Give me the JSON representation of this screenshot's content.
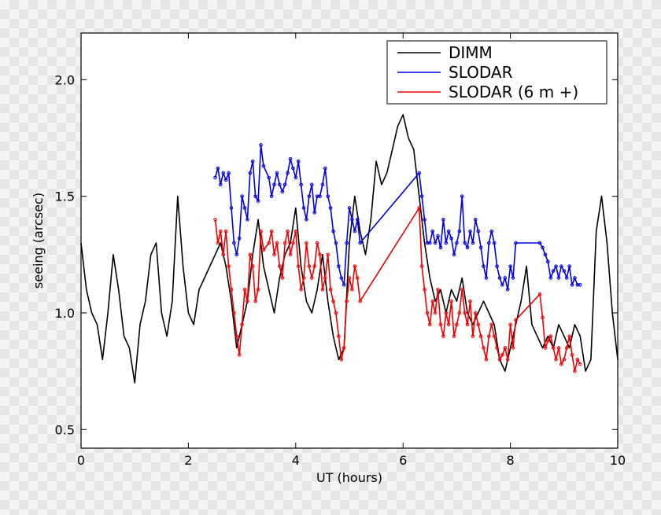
{
  "chart_data": {
    "type": "line",
    "title": "",
    "xlabel": "UT (hours)",
    "ylabel": "seeing (arcsec)",
    "xlim": [
      0,
      10
    ],
    "ylim": [
      0.42,
      2.2
    ],
    "xticks": [
      0,
      2,
      4,
      6,
      8,
      10
    ],
    "xtick_labels": [
      "0",
      "2",
      "4",
      "6",
      "8",
      "10"
    ],
    "yticks": [
      0.5,
      1.0,
      1.5,
      2.0
    ],
    "ytick_labels": [
      "0.5",
      "1.0",
      "1.5",
      "2.0"
    ],
    "legend_position": "top-right",
    "series": [
      {
        "name": "DIMM",
        "color": "#000000",
        "x": [
          0.0,
          0.1,
          0.2,
          0.3,
          0.4,
          0.5,
          0.6,
          0.7,
          0.8,
          0.9,
          1.0,
          1.1,
          1.2,
          1.3,
          1.4,
          1.5,
          1.6,
          1.7,
          1.8,
          1.9,
          2.0,
          2.1,
          2.2,
          2.3,
          2.4,
          2.5,
          2.6,
          2.7,
          2.8,
          2.9,
          3.0,
          3.1,
          3.2,
          3.3,
          3.4,
          3.5,
          3.6,
          3.7,
          3.8,
          3.9,
          4.0,
          4.1,
          4.2,
          4.3,
          4.4,
          4.5,
          4.6,
          4.7,
          4.8,
          4.9,
          5.0,
          5.1,
          5.2,
          5.3,
          5.4,
          5.5,
          5.6,
          5.7,
          5.8,
          5.9,
          6.0,
          6.1,
          6.2,
          6.3,
          6.4,
          6.5,
          6.6,
          6.7,
          6.8,
          6.9,
          7.0,
          7.1,
          7.2,
          7.3,
          7.4,
          7.5,
          7.6,
          7.7,
          7.8,
          7.9,
          8.0,
          8.1,
          8.2,
          8.3,
          8.4,
          8.5,
          8.6,
          8.7,
          8.8,
          8.9,
          9.0,
          9.1,
          9.2,
          9.3,
          9.4,
          9.5,
          9.6,
          9.7,
          9.8,
          9.9,
          10.0
        ],
        "values": [
          1.3,
          1.1,
          1.0,
          0.95,
          0.8,
          1.0,
          1.25,
          1.1,
          0.9,
          0.85,
          0.7,
          0.95,
          1.05,
          1.25,
          1.3,
          1.0,
          0.9,
          1.05,
          1.5,
          1.2,
          1.0,
          0.95,
          1.1,
          1.15,
          1.2,
          1.25,
          1.3,
          1.2,
          1.05,
          0.85,
          0.95,
          1.05,
          1.25,
          1.4,
          1.2,
          1.1,
          1.0,
          1.15,
          1.25,
          1.3,
          1.45,
          1.2,
          1.05,
          1.0,
          1.1,
          1.25,
          1.05,
          0.9,
          0.8,
          0.85,
          1.3,
          1.5,
          1.35,
          1.25,
          1.4,
          1.65,
          1.55,
          1.6,
          1.7,
          1.8,
          1.85,
          1.75,
          1.7,
          1.5,
          1.3,
          1.15,
          1.05,
          1.1,
          1.0,
          1.1,
          1.05,
          1.15,
          1.0,
          0.95,
          1.0,
          1.05,
          1.0,
          0.95,
          0.8,
          0.75,
          0.85,
          0.95,
          1.05,
          1.2,
          0.95,
          0.9,
          0.85,
          0.9,
          0.85,
          0.95,
          0.9,
          0.85,
          0.95,
          0.9,
          0.75,
          0.8,
          1.35,
          1.5,
          1.3,
          1.0,
          0.8
        ]
      },
      {
        "name": "SLODAR",
        "color": "#0000dd",
        "x": [
          2.5,
          2.55,
          2.6,
          2.65,
          2.7,
          2.75,
          2.8,
          2.85,
          2.9,
          2.95,
          3.0,
          3.05,
          3.1,
          3.15,
          3.2,
          3.25,
          3.3,
          3.35,
          3.4,
          3.5,
          3.55,
          3.6,
          3.65,
          3.7,
          3.75,
          3.8,
          3.85,
          3.9,
          3.95,
          4.0,
          4.05,
          4.1,
          4.15,
          4.2,
          4.25,
          4.3,
          4.35,
          4.4,
          4.45,
          4.5,
          4.55,
          4.6,
          4.65,
          4.7,
          4.75,
          4.8,
          4.85,
          4.9,
          4.95,
          5.0,
          5.05,
          5.1,
          5.15,
          5.2,
          6.3,
          6.35,
          6.4,
          6.45,
          6.5,
          6.55,
          6.6,
          6.65,
          6.7,
          6.75,
          6.8,
          6.85,
          6.9,
          6.95,
          7.0,
          7.05,
          7.1,
          7.15,
          7.2,
          7.25,
          7.3,
          7.35,
          7.4,
          7.45,
          7.5,
          7.55,
          7.6,
          7.65,
          7.7,
          7.75,
          7.8,
          7.85,
          7.9,
          7.95,
          8.0,
          8.05,
          8.1,
          8.55,
          8.6,
          8.65,
          8.7,
          8.75,
          8.8,
          8.85,
          8.9,
          8.95,
          9.0,
          9.05,
          9.1,
          9.15,
          9.2,
          9.25,
          9.3
        ],
        "values": [
          1.58,
          1.62,
          1.55,
          1.6,
          1.57,
          1.6,
          1.45,
          1.3,
          1.25,
          1.32,
          1.5,
          1.45,
          1.4,
          1.6,
          1.65,
          1.5,
          1.48,
          1.72,
          1.63,
          1.58,
          1.5,
          1.55,
          1.6,
          1.55,
          1.52,
          1.55,
          1.6,
          1.66,
          1.62,
          1.58,
          1.65,
          1.55,
          1.45,
          1.4,
          1.5,
          1.55,
          1.43,
          1.5,
          1.5,
          1.55,
          1.62,
          1.5,
          1.45,
          1.35,
          1.3,
          1.2,
          1.15,
          1.12,
          1.3,
          1.45,
          1.4,
          1.35,
          1.4,
          1.3,
          1.6,
          1.5,
          1.4,
          1.3,
          1.3,
          1.35,
          1.3,
          1.33,
          1.28,
          1.4,
          1.3,
          1.35,
          1.32,
          1.25,
          1.3,
          1.35,
          1.5,
          1.3,
          1.28,
          1.35,
          1.3,
          1.4,
          1.35,
          1.28,
          1.2,
          1.15,
          1.3,
          1.35,
          1.3,
          1.2,
          1.15,
          1.12,
          1.15,
          1.1,
          1.2,
          1.15,
          1.3,
          1.3,
          1.28,
          1.25,
          1.22,
          1.15,
          1.18,
          1.2,
          1.15,
          1.2,
          1.18,
          1.15,
          1.2,
          1.12,
          1.15,
          1.12,
          1.12
        ]
      },
      {
        "name": "SLODAR (6 m +)",
        "color": "#ee0000",
        "x": [
          2.5,
          2.55,
          2.6,
          2.65,
          2.7,
          2.75,
          2.8,
          2.85,
          2.9,
          2.95,
          3.0,
          3.05,
          3.1,
          3.15,
          3.2,
          3.25,
          3.3,
          3.35,
          3.4,
          3.5,
          3.55,
          3.6,
          3.65,
          3.7,
          3.75,
          3.8,
          3.85,
          3.9,
          3.95,
          4.0,
          4.05,
          4.1,
          4.15,
          4.2,
          4.25,
          4.3,
          4.35,
          4.4,
          4.45,
          4.5,
          4.55,
          4.6,
          4.65,
          4.7,
          4.75,
          4.8,
          4.85,
          4.9,
          4.95,
          5.0,
          5.05,
          5.1,
          5.15,
          5.2,
          6.3,
          6.35,
          6.4,
          6.45,
          6.5,
          6.55,
          6.6,
          6.65,
          6.7,
          6.75,
          6.8,
          6.85,
          6.9,
          6.95,
          7.0,
          7.05,
          7.1,
          7.15,
          7.2,
          7.25,
          7.3,
          7.35,
          7.4,
          7.45,
          7.5,
          7.55,
          7.6,
          7.65,
          7.7,
          7.75,
          7.8,
          7.85,
          7.9,
          7.95,
          8.0,
          8.05,
          8.1,
          8.55,
          8.6,
          8.65,
          8.7,
          8.75,
          8.8,
          8.85,
          8.9,
          8.95,
          9.0,
          9.05,
          9.1,
          9.15,
          9.2,
          9.25,
          9.3
        ],
        "values": [
          1.4,
          1.3,
          1.35,
          1.25,
          1.35,
          1.2,
          1.1,
          1.0,
          0.9,
          0.82,
          0.95,
          1.1,
          1.05,
          1.25,
          1.2,
          1.05,
          1.1,
          1.35,
          1.27,
          1.3,
          1.35,
          1.25,
          1.3,
          1.2,
          1.15,
          1.3,
          1.35,
          1.25,
          1.3,
          1.35,
          1.2,
          1.1,
          1.15,
          1.3,
          1.2,
          1.15,
          1.2,
          1.3,
          1.25,
          1.1,
          1.15,
          1.25,
          1.1,
          1.05,
          1.0,
          0.9,
          0.8,
          0.85,
          1.05,
          1.15,
          1.1,
          1.2,
          1.15,
          1.05,
          1.45,
          1.2,
          1.1,
          1.0,
          0.95,
          1.05,
          1.0,
          1.1,
          0.95,
          0.9,
          1.0,
          0.95,
          1.05,
          0.9,
          0.95,
          1.0,
          1.1,
          1.0,
          0.95,
          1.05,
          0.9,
          1.0,
          0.95,
          0.9,
          0.85,
          0.8,
          0.9,
          0.95,
          0.9,
          0.85,
          0.8,
          0.82,
          0.85,
          0.8,
          0.95,
          0.85,
          0.97,
          1.08,
          0.98,
          0.85,
          0.88,
          0.9,
          0.85,
          0.8,
          0.85,
          0.78,
          0.8,
          0.85,
          0.9,
          0.82,
          0.75,
          0.8,
          0.78
        ]
      }
    ]
  }
}
